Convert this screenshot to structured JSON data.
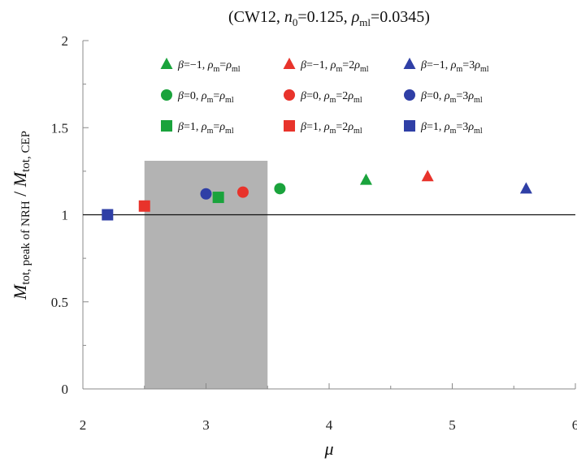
{
  "chart_data": {
    "type": "scatter",
    "title": "(CW12, n0=0.125, ρml=0.0345)",
    "xlabel": "μ",
    "ylabel": "Mtot, peak of NRH / Mtot, CEP",
    "xlim": [
      2,
      6
    ],
    "ylim": [
      0,
      2
    ],
    "x_ticks": [
      "2",
      "3",
      "4",
      "5",
      "6"
    ],
    "y_ticks": [
      "0",
      "0.5",
      "1",
      "1.5",
      "2"
    ],
    "reference_line_y": 1,
    "shaded_band_x": [
      2.5,
      3.5
    ],
    "shaded_band_y": [
      0,
      1.31
    ],
    "grid": false,
    "legend_placement": "top-right",
    "colors": {
      "green": "#1aa33c",
      "red": "#e8332b",
      "blue": "#2f3fa6",
      "band": "#b3b3b3"
    },
    "series": [
      {
        "name": "β=−1, ρm=ρml",
        "marker": "triangle",
        "color": "#1aa33c",
        "x": [
          4.3
        ],
        "y": [
          1.2
        ]
      },
      {
        "name": "β=−1, ρm=2ρml",
        "marker": "triangle",
        "color": "#e8332b",
        "x": [
          4.8
        ],
        "y": [
          1.22
        ]
      },
      {
        "name": "β=−1, ρm=3ρml",
        "marker": "triangle",
        "color": "#2f3fa6",
        "x": [
          5.6
        ],
        "y": [
          1.15
        ]
      },
      {
        "name": "β=0, ρm=ρml",
        "marker": "circle",
        "color": "#1aa33c",
        "x": [
          3.6
        ],
        "y": [
          1.15
        ]
      },
      {
        "name": "β=0, ρm=2ρml",
        "marker": "circle",
        "color": "#e8332b",
        "x": [
          3.3
        ],
        "y": [
          1.13
        ]
      },
      {
        "name": "β=0, ρm=3ρml",
        "marker": "circle",
        "color": "#2f3fa6",
        "x": [
          3.0
        ],
        "y": [
          1.12
        ]
      },
      {
        "name": "β=1, ρm=ρml",
        "marker": "square",
        "color": "#1aa33c",
        "x": [
          3.1
        ],
        "y": [
          1.1
        ]
      },
      {
        "name": "β=1, ρm=2ρml",
        "marker": "square",
        "color": "#e8332b",
        "x": [
          2.5
        ],
        "y": [
          1.05
        ]
      },
      {
        "name": "β=1, ρm=3ρml",
        "marker": "square",
        "color": "#2f3fa6",
        "x": [
          2.2
        ],
        "y": [
          1.0
        ]
      }
    ]
  }
}
